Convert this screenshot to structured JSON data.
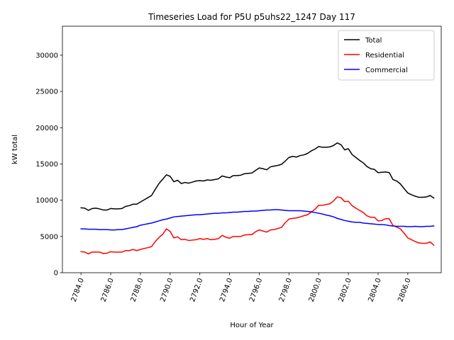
{
  "chart_data": {
    "type": "line",
    "title": "Timeseries Load for P5U p5uhs22_1247  Day 117",
    "xlabel": "Hour of Year",
    "ylabel": "kW total",
    "xlim": [
      2782.75,
      2808.25
    ],
    "ylim": [
      0,
      34000
    ],
    "x_ticks": [
      2784,
      2786,
      2788,
      2790,
      2792,
      2794,
      2796,
      2798,
      2800,
      2802,
      2804,
      2806
    ],
    "x_tick_labels": [
      "2784.0",
      "2786.0",
      "2788.0",
      "2790.0",
      "2792.0",
      "2794.0",
      "2796.0",
      "2798.0",
      "2800.0",
      "2802.0",
      "2804.0",
      "2806.0"
    ],
    "y_ticks": [
      0,
      5000,
      10000,
      15000,
      20000,
      25000,
      30000
    ],
    "y_tick_labels": [
      "0",
      "5000",
      "10000",
      "15000",
      "20000",
      "25000",
      "30000"
    ],
    "legend_position": "top-right",
    "x": [
      2784.0,
      2784.25,
      2784.5,
      2784.75,
      2785.0,
      2785.25,
      2785.5,
      2785.75,
      2786.0,
      2786.25,
      2786.5,
      2786.75,
      2787.0,
      2787.25,
      2787.5,
      2787.75,
      2788.0,
      2788.25,
      2788.5,
      2788.75,
      2789.0,
      2789.25,
      2789.5,
      2789.75,
      2790.0,
      2790.25,
      2790.5,
      2790.75,
      2791.0,
      2791.25,
      2791.5,
      2791.75,
      2792.0,
      2792.25,
      2792.5,
      2792.75,
      2793.0,
      2793.25,
      2793.5,
      2793.75,
      2794.0,
      2794.25,
      2794.5,
      2794.75,
      2795.0,
      2795.25,
      2795.5,
      2795.75,
      2796.0,
      2796.25,
      2796.5,
      2796.75,
      2797.0,
      2797.25,
      2797.5,
      2797.75,
      2798.0,
      2798.25,
      2798.5,
      2798.75,
      2799.0,
      2799.25,
      2799.5,
      2799.75,
      2800.0,
      2800.25,
      2800.5,
      2800.75,
      2801.0,
      2801.25,
      2801.5,
      2801.75,
      2802.0,
      2802.25,
      2802.5,
      2802.75,
      2803.0,
      2803.25,
      2803.5,
      2803.75,
      2804.0,
      2804.25,
      2804.5,
      2804.75,
      2805.0,
      2805.25,
      2805.5,
      2805.75,
      2806.0,
      2806.25,
      2806.5,
      2806.75,
      2807.0,
      2807.25,
      2807.5,
      2807.75
    ],
    "series": [
      {
        "name": "Total",
        "color": "#000000",
        "values": [
          8950,
          8900,
          8600,
          8850,
          8900,
          8800,
          8650,
          8650,
          8850,
          8800,
          8800,
          8850,
          9150,
          9250,
          9450,
          9450,
          9750,
          10050,
          10350,
          10650,
          11500,
          12300,
          12900,
          13500,
          13300,
          12550,
          12750,
          12300,
          12450,
          12350,
          12500,
          12650,
          12700,
          12650,
          12800,
          12750,
          12850,
          12950,
          13350,
          13200,
          13100,
          13400,
          13400,
          13450,
          13650,
          13700,
          13750,
          14100,
          14450,
          14350,
          14200,
          14600,
          14700,
          14800,
          14950,
          15400,
          15900,
          16050,
          15950,
          16150,
          16250,
          16450,
          16800,
          17050,
          17400,
          17300,
          17300,
          17350,
          17550,
          17900,
          17650,
          16950,
          17100,
          16300,
          15900,
          15500,
          15150,
          14650,
          14350,
          14250,
          13800,
          13850,
          13900,
          13800,
          12850,
          12650,
          12250,
          11600,
          11000,
          10750,
          10550,
          10400,
          10400,
          10450,
          10650,
          10300
        ]
      },
      {
        "name": "Residential",
        "color": "#ff0000",
        "values": [
          2900,
          2850,
          2600,
          2850,
          2850,
          2850,
          2650,
          2700,
          2900,
          2850,
          2850,
          2850,
          3050,
          3050,
          3200,
          3050,
          3200,
          3350,
          3450,
          3600,
          4300,
          4850,
          5300,
          6050,
          5700,
          4800,
          4950,
          4550,
          4600,
          4450,
          4500,
          4550,
          4700,
          4600,
          4700,
          4550,
          4600,
          4700,
          5150,
          4900,
          4750,
          5000,
          5000,
          5000,
          5200,
          5250,
          5250,
          5650,
          5900,
          5750,
          5600,
          5900,
          5950,
          6100,
          6250,
          6900,
          7400,
          7500,
          7550,
          7700,
          7850,
          8000,
          8350,
          8750,
          9300,
          9300,
          9400,
          9500,
          9900,
          10450,
          10350,
          9800,
          9850,
          9250,
          8900,
          8600,
          8300,
          7850,
          7650,
          7650,
          7150,
          7200,
          7450,
          7450,
          6500,
          6300,
          6050,
          5450,
          4800,
          4550,
          4300,
          4100,
          4050,
          4050,
          4250,
          3800
        ]
      },
      {
        "name": "Commercial",
        "color": "#0000ff",
        "values": [
          6050,
          6050,
          6000,
          6000,
          6000,
          5950,
          5950,
          5950,
          5900,
          5900,
          5950,
          5950,
          6050,
          6150,
          6250,
          6350,
          6550,
          6650,
          6750,
          6850,
          7000,
          7150,
          7300,
          7400,
          7550,
          7700,
          7750,
          7800,
          7850,
          7900,
          7950,
          8000,
          8000,
          8050,
          8100,
          8150,
          8200,
          8200,
          8250,
          8250,
          8300,
          8350,
          8350,
          8400,
          8450,
          8450,
          8500,
          8500,
          8550,
          8600,
          8650,
          8650,
          8700,
          8700,
          8650,
          8600,
          8550,
          8550,
          8550,
          8550,
          8500,
          8450,
          8400,
          8300,
          8200,
          8100,
          7950,
          7850,
          7700,
          7500,
          7350,
          7200,
          7100,
          7000,
          6950,
          6950,
          6850,
          6800,
          6750,
          6700,
          6650,
          6650,
          6600,
          6500,
          6450,
          6400,
          6400,
          6400,
          6350,
          6350,
          6400,
          6350,
          6350,
          6400,
          6400,
          6450
        ]
      }
    ]
  }
}
